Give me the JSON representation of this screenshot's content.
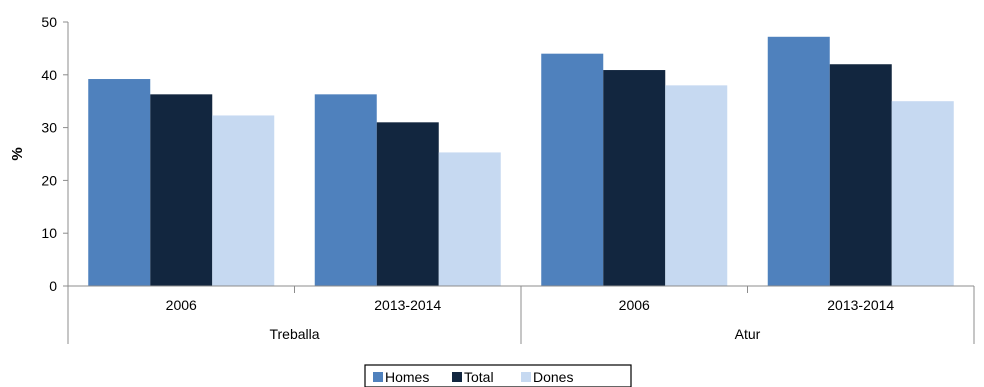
{
  "chart_data": {
    "type": "bar",
    "ylabel": "%",
    "ylim": [
      0,
      50
    ],
    "yticks": [
      0,
      10,
      20,
      30,
      40,
      50
    ],
    "grid": false,
    "legend_position": "bottom",
    "groups": [
      {
        "name": "Treballa",
        "categories": [
          "2006",
          "2013-2014"
        ]
      },
      {
        "name": "Atur",
        "categories": [
          "2006",
          "2013-2014"
        ]
      }
    ],
    "series": [
      {
        "name": "Homes",
        "color": "#4f81bd",
        "values": [
          39.2,
          36.3,
          44.0,
          47.2
        ]
      },
      {
        "name": "Total",
        "color": "#12263f",
        "values": [
          36.3,
          31.0,
          40.9,
          42.0
        ]
      },
      {
        "name": "Dones",
        "color": "#c6d9f1",
        "values": [
          32.3,
          25.3,
          38.0,
          35.0
        ]
      }
    ]
  }
}
